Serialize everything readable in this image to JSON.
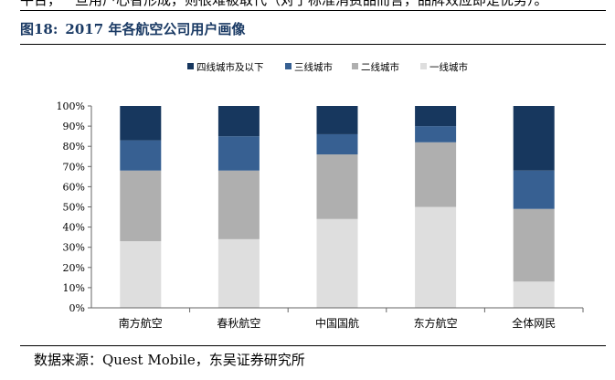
{
  "document": {
    "top_text": "平台，一旦用户心智形成，则很难被取代（对于标准消费品而言，品牌效应即是优势）。",
    "figure_label": "图18:",
    "figure_title": "2017 年各航空公司用户画像",
    "source": "数据来源：Quest Mobile，东吴证券研究所"
  },
  "colors": {
    "tier4": "#17375e",
    "tier3": "#376092",
    "tier2": "#afafaf",
    "tier1": "#dedede",
    "title": "#1a3a64"
  },
  "chart_data": {
    "type": "bar",
    "stacked": true,
    "title": "",
    "xlabel": "",
    "ylabel": "",
    "ylim": [
      0,
      100
    ],
    "yticks": [
      "0%",
      "10%",
      "20%",
      "30%",
      "40%",
      "50%",
      "60%",
      "70%",
      "80%",
      "90%",
      "100%"
    ],
    "categories": [
      "南方航空",
      "春秋航空",
      "中国国航",
      "东方航空",
      "全体网民"
    ],
    "legend_position": "top",
    "series": [
      {
        "name": "一线城市",
        "color": "#dedede",
        "values": [
          33,
          34,
          44,
          50,
          13
        ]
      },
      {
        "name": "二线城市",
        "color": "#afafaf",
        "values": [
          35,
          34,
          32,
          32,
          36
        ]
      },
      {
        "name": "三线城市",
        "color": "#376092",
        "values": [
          15,
          17,
          10,
          8,
          19
        ]
      },
      {
        "name": "四线城市及以下",
        "color": "#17375e",
        "values": [
          17,
          15,
          14,
          10,
          32
        ]
      }
    ],
    "legend_order": [
      "四线城市及以下",
      "三线城市",
      "二线城市",
      "一线城市"
    ]
  }
}
